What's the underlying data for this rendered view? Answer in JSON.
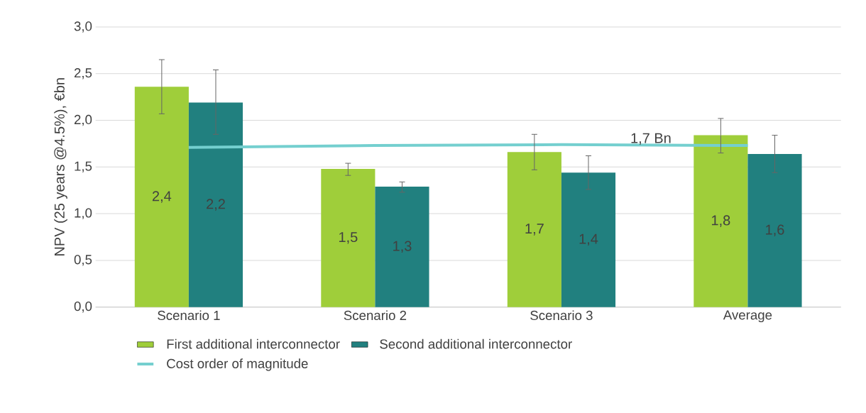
{
  "chart_data": {
    "type": "bar",
    "ylabel": "NPV (25 years @4.5%), €bn",
    "categories": [
      "Scenario 1",
      "Scenario 2",
      "Scenario 3",
      "Average"
    ],
    "series": [
      {
        "name": "First additional interconnector",
        "color": "#9fce3a",
        "values": [
          2.36,
          1.48,
          1.66,
          1.84
        ],
        "errors": [
          [
            2.07,
            2.65
          ],
          [
            1.41,
            1.54
          ],
          [
            1.47,
            1.85
          ],
          [
            1.65,
            2.02
          ]
        ],
        "value_labels": [
          "2,4",
          "1,5",
          "1,7",
          "1,8"
        ]
      },
      {
        "name": "Second additional interconnector",
        "color": "#21807f",
        "values": [
          2.19,
          1.29,
          1.44,
          1.64
        ],
        "errors": [
          [
            1.85,
            2.54
          ],
          [
            1.23,
            1.34
          ],
          [
            1.26,
            1.62
          ],
          [
            1.44,
            1.84
          ]
        ],
        "value_labels": [
          "2,2",
          "1,3",
          "1,4",
          "1,6"
        ]
      },
      {
        "name": "Cost order of magnitude",
        "type": "line",
        "color": "#74cfcf",
        "values": [
          1.71,
          1.73,
          1.74,
          1.73
        ]
      }
    ],
    "annotations": [
      "1,7 Bn"
    ],
    "ylim": [
      0,
      3
    ],
    "yticks": [
      {
        "value": 0,
        "label": "0,0"
      },
      {
        "value": 0.5,
        "label": "0,5"
      },
      {
        "value": 1,
        "label": "1,0"
      },
      {
        "value": 1.5,
        "label": "1,5"
      },
      {
        "value": 2,
        "label": "2,0"
      },
      {
        "value": 2.5,
        "label": "2,5"
      },
      {
        "value": 3,
        "label": "3,0"
      }
    ],
    "grid": "y",
    "legend": "bottom"
  }
}
